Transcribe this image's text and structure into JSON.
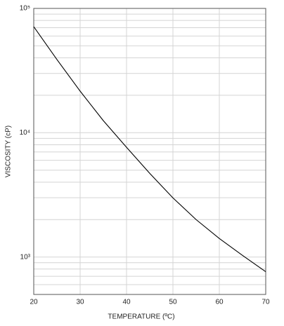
{
  "chart_data": {
    "type": "line",
    "x_label": "TEMPERATURE (ºC)",
    "y_label": "VISCOSITY (cP)",
    "x": [
      20,
      25,
      30,
      35,
      40,
      45,
      50,
      55,
      60,
      65,
      70
    ],
    "series": [
      {
        "color": "#000000",
        "values": [
          71300,
          38800,
          21600,
          12500,
          7630,
          4710,
          2990,
          2000,
          1410,
          1030,
          762
        ]
      }
    ],
    "xlim": [
      20,
      70
    ],
    "xticks": [
      20,
      30,
      40,
      50,
      60,
      70
    ],
    "ylim": [
      500,
      100000
    ],
    "ylog": true,
    "yticks": [
      {
        "value": 1000,
        "label": "10³"
      },
      {
        "value": 10000,
        "label": "10⁴"
      },
      {
        "value": 100000,
        "label": "10⁵"
      }
    ],
    "yminorticks": [
      600,
      700,
      800,
      900,
      2000,
      3000,
      4000,
      5000,
      6000,
      7000,
      8000,
      9000,
      20000,
      30000,
      40000,
      50000,
      60000,
      70000,
      80000,
      90000
    ],
    "grid": true
  }
}
